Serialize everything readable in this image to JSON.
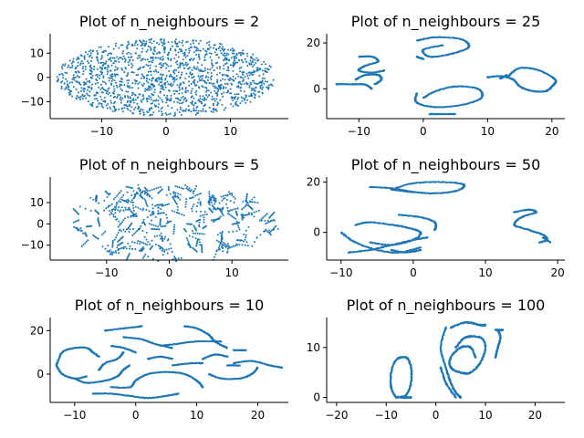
{
  "chart_data": [
    {
      "type": "scatter",
      "title": "Plot of n_neighbours = 2",
      "xlabel": "",
      "ylabel": "",
      "xlim": [
        -18,
        19
      ],
      "ylim": [
        -17,
        18
      ],
      "xticks": [
        -10,
        0,
        10
      ],
      "yticks": [
        -10,
        0,
        10
      ],
      "grid": false,
      "color": "#1f77b4",
      "shape": {
        "kind": "blob",
        "cx": 0,
        "cy": 0,
        "rx": 17,
        "ry": 16,
        "n": 1500
      }
    },
    {
      "type": "scatter",
      "title": "Plot of n_neighbours = 25",
      "xlabel": "",
      "ylabel": "",
      "xlim": [
        -15,
        22
      ],
      "ylim": [
        -13,
        24
      ],
      "xticks": [
        -10,
        0,
        10,
        20
      ],
      "yticks": [
        0,
        20
      ],
      "grid": false,
      "color": "#1f77b4",
      "curves": [
        [
          [
            -13.5,
            2
          ],
          [
            -11,
            2
          ],
          [
            -9,
            1.8
          ],
          [
            -8,
            0
          ]
        ],
        [
          [
            -10.5,
            4
          ],
          [
            -9,
            6
          ],
          [
            -7,
            6
          ],
          [
            -6.5,
            4
          ],
          [
            -7.5,
            2
          ]
        ],
        [
          [
            -10,
            14
          ],
          [
            -8,
            14
          ],
          [
            -7,
            12
          ],
          [
            -9,
            10
          ],
          [
            -10,
            8
          ],
          [
            -8,
            7
          ],
          [
            -6,
            8
          ]
        ],
        [
          [
            -1,
            21
          ],
          [
            2,
            22.5
          ],
          [
            6,
            21.5
          ],
          [
            7,
            18
          ],
          [
            4,
            15
          ],
          [
            1,
            14
          ],
          [
            0,
            17
          ],
          [
            3,
            19
          ]
        ],
        [
          [
            -1,
            14
          ],
          [
            0,
            13
          ]
        ],
        [
          [
            -1,
            -2
          ],
          [
            -1,
            -6
          ],
          [
            2,
            -8
          ],
          [
            6,
            -7
          ],
          [
            9,
            -4
          ],
          [
            8.5,
            0
          ],
          [
            5,
            1
          ],
          [
            2,
            -1
          ],
          [
            0,
            -4
          ]
        ],
        [
          [
            1,
            -11
          ],
          [
            3,
            -11
          ],
          [
            5,
            -11
          ]
        ],
        [
          [
            10,
            5
          ],
          [
            12,
            5.5
          ],
          [
            14,
            4
          ],
          [
            15,
            1
          ],
          [
            17,
            -1
          ],
          [
            19,
            -1
          ],
          [
            20,
            1
          ],
          [
            20.5,
            4
          ],
          [
            18,
            8
          ],
          [
            15,
            9
          ],
          [
            13,
            5
          ]
        ],
        [
          [
            13,
            6
          ],
          [
            12,
            4.5
          ]
        ]
      ]
    },
    {
      "type": "scatter",
      "title": "Plot of n_neighbours = 5",
      "xlabel": "",
      "ylabel": "",
      "xlim": [
        -19,
        19
      ],
      "ylim": [
        -17,
        22
      ],
      "xticks": [
        -10,
        0,
        10
      ],
      "yticks": [
        -10,
        0,
        10
      ],
      "grid": false,
      "color": "#1f77b4",
      "shape": {
        "kind": "segments",
        "cx": 0,
        "cy": 1,
        "rx": 17,
        "ry": 18,
        "n": 210
      }
    },
    {
      "type": "scatter",
      "title": "Plot of n_neighbours = 50",
      "xlabel": "",
      "ylabel": "",
      "xlim": [
        -12,
        21
      ],
      "ylim": [
        -11,
        22
      ],
      "xticks": [
        -10,
        0,
        10,
        20
      ],
      "yticks": [
        0,
        20
      ],
      "grid": false,
      "color": "#1f77b4",
      "curves": [
        [
          [
            -6,
            18
          ],
          [
            -3,
            17.5
          ],
          [
            0,
            16
          ]
        ],
        [
          [
            -3,
            17
          ],
          [
            0,
            19.5
          ],
          [
            4,
            20
          ],
          [
            7,
            19
          ],
          [
            6,
            16.5
          ],
          [
            3,
            15.5
          ],
          [
            0,
            16
          ],
          [
            -3,
            17
          ]
        ],
        [
          [
            -2,
            7
          ],
          [
            1,
            6
          ],
          [
            3,
            4
          ],
          [
            3,
            1
          ]
        ],
        [
          [
            -8,
            3
          ],
          [
            -6,
            4
          ],
          [
            -3,
            3
          ],
          [
            -1,
            2
          ],
          [
            1,
            0
          ],
          [
            0,
            -3
          ],
          [
            -3,
            -5
          ],
          [
            -6,
            -4
          ]
        ],
        [
          [
            -10,
            0
          ],
          [
            -8,
            -4
          ],
          [
            -5,
            -7
          ],
          [
            -2,
            -8
          ],
          [
            1,
            -6
          ]
        ],
        [
          [
            -9,
            -8
          ],
          [
            -6,
            -7
          ],
          [
            -3,
            -5
          ],
          [
            0,
            -3
          ],
          [
            2,
            -2
          ]
        ],
        [
          [
            -3,
            -7
          ],
          [
            -1,
            -8
          ],
          [
            1,
            -7
          ]
        ],
        [
          [
            14,
            8
          ],
          [
            16,
            9
          ],
          [
            17,
            8
          ],
          [
            15,
            6
          ],
          [
            14,
            3
          ],
          [
            16,
            1
          ],
          [
            18,
            -1
          ],
          [
            18.5,
            -3
          ],
          [
            17.5,
            -4
          ]
        ],
        [
          [
            18,
            -2
          ],
          [
            19,
            -4
          ]
        ]
      ]
    },
    {
      "type": "scatter",
      "title": "Plot of n_neighbours = 10",
      "xlabel": "",
      "ylabel": "",
      "xlim": [
        -14,
        25
      ],
      "ylim": [
        -13,
        26
      ],
      "xticks": [
        -10,
        0,
        10,
        20
      ],
      "yticks": [
        0,
        20
      ],
      "grid": false,
      "color": "#1f77b4",
      "curves": [
        [
          [
            -13,
            4
          ],
          [
            -12,
            10
          ],
          [
            -10,
            12
          ],
          [
            -8,
            12
          ],
          [
            -7,
            10
          ],
          [
            -6,
            8
          ]
        ],
        [
          [
            -13,
            4
          ],
          [
            -12,
            0
          ],
          [
            -10,
            -2
          ],
          [
            -8,
            -1
          ]
        ],
        [
          [
            -10,
            -2
          ],
          [
            -8,
            -4
          ],
          [
            -5,
            -3
          ],
          [
            -3,
            -1
          ],
          [
            -2,
            2
          ],
          [
            -1,
            4
          ]
        ],
        [
          [
            -5,
            20
          ],
          [
            -2,
            21
          ],
          [
            1,
            22
          ]
        ],
        [
          [
            -4,
            13
          ],
          [
            -2,
            12
          ],
          [
            0,
            10
          ]
        ],
        [
          [
            -2,
            17
          ],
          [
            1,
            16
          ],
          [
            3,
            14
          ],
          [
            6,
            12
          ]
        ],
        [
          [
            -6,
            2
          ],
          [
            -5,
            5
          ],
          [
            -3,
            7
          ],
          [
            -2,
            10
          ]
        ],
        [
          [
            2,
            7
          ],
          [
            4,
            8
          ],
          [
            6,
            7
          ]
        ],
        [
          [
            -7,
            -9
          ],
          [
            -4,
            -9
          ],
          [
            -1,
            -10
          ],
          [
            2,
            -11
          ],
          [
            5,
            -10
          ],
          [
            7,
            -9
          ]
        ],
        [
          [
            -4,
            -6
          ],
          [
            -1,
            -6
          ],
          [
            0,
            -3
          ],
          [
            2,
            0
          ],
          [
            5,
            1
          ],
          [
            8,
            0
          ],
          [
            10,
            -3
          ],
          [
            11,
            -6
          ]
        ],
        [
          [
            8,
            22
          ],
          [
            10,
            21
          ],
          [
            12,
            18
          ],
          [
            13,
            15
          ],
          [
            15,
            12
          ]
        ],
        [
          [
            11,
            7
          ],
          [
            13,
            9
          ],
          [
            15,
            8
          ]
        ],
        [
          [
            12,
            0
          ],
          [
            14,
            -2
          ],
          [
            17,
            -2
          ],
          [
            19,
            0
          ],
          [
            20,
            3
          ]
        ],
        [
          [
            16,
            11
          ],
          [
            18,
            11
          ]
        ],
        [
          [
            16,
            5
          ],
          [
            19,
            6
          ],
          [
            22,
            4
          ],
          [
            24,
            3
          ]
        ],
        [
          [
            15,
            4
          ],
          [
            17,
            4
          ]
        ],
        [
          [
            4,
            13
          ],
          [
            7,
            14
          ],
          [
            10,
            15
          ],
          [
            14,
            15
          ]
        ],
        [
          [
            6,
            4
          ],
          [
            9,
            5
          ],
          [
            11,
            5
          ]
        ]
      ]
    },
    {
      "type": "scatter",
      "title": "Plot of n_neighbours = 100",
      "xlabel": "",
      "ylabel": "",
      "xlim": [
        -22,
        26
      ],
      "ylim": [
        -1,
        16
      ],
      "xticks": [
        -20,
        -10,
        0,
        10,
        20
      ],
      "yticks": [
        0,
        10
      ],
      "grid": false,
      "color": "#1f77b4",
      "curves": [
        [
          [
            -8,
            0
          ],
          [
            -9,
            2
          ],
          [
            -9,
            5
          ],
          [
            -8,
            7.5
          ],
          [
            -6,
            8
          ],
          [
            -5,
            6
          ],
          [
            -5,
            3
          ],
          [
            -6,
            0.5
          ],
          [
            -8,
            0
          ]
        ],
        [
          [
            -5,
            0
          ],
          [
            -7,
            0
          ]
        ],
        [
          [
            3,
            14
          ],
          [
            6,
            15
          ],
          [
            9,
            14.5
          ],
          [
            10,
            14.5
          ]
        ],
        [
          [
            2,
            14
          ],
          [
            1,
            10
          ],
          [
            2,
            6
          ],
          [
            3,
            3
          ],
          [
            4,
            1
          ],
          [
            5,
            0
          ]
        ],
        [
          [
            1,
            6
          ],
          [
            2,
            3
          ],
          [
            4,
            0
          ]
        ],
        [
          [
            4,
            10
          ],
          [
            6,
            12
          ],
          [
            9,
            12
          ],
          [
            10,
            10
          ],
          [
            9,
            7
          ],
          [
            7,
            5
          ],
          [
            5,
            5
          ],
          [
            3,
            6
          ],
          [
            3,
            8
          ],
          [
            5,
            10
          ],
          [
            7,
            10
          ],
          [
            8,
            8
          ]
        ],
        [
          [
            12.5,
            13.5
          ],
          [
            13,
            12
          ],
          [
            12.5,
            10
          ],
          [
            12,
            8
          ]
        ],
        [
          [
            12,
            13.5
          ],
          [
            13.5,
            13.5
          ]
        ]
      ]
    }
  ]
}
